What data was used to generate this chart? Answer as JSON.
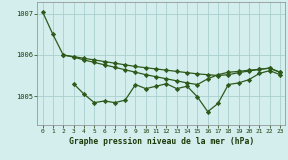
{
  "background_color": "#d4eeed",
  "grid_color": "#aacfcf",
  "line_color": "#2d5a1b",
  "title": "Graphe pression niveau de la mer (hPa)",
  "ylabel_ticks": [
    1005,
    1006,
    1007
  ],
  "xlim": [
    -0.5,
    23.5
  ],
  "ylim": [
    1004.3,
    1007.3
  ],
  "line1": {
    "x": [
      0,
      1,
      2,
      3,
      4,
      5,
      6,
      7,
      8,
      9,
      10,
      11,
      12,
      13,
      14,
      15,
      16,
      17,
      18,
      19,
      20,
      21,
      22,
      23
    ],
    "y": [
      1007.05,
      1006.5,
      1006.0,
      1005.95,
      1005.88,
      1005.82,
      1005.76,
      1005.7,
      1005.64,
      1005.58,
      1005.52,
      1005.47,
      1005.42,
      1005.37,
      1005.32,
      1005.28,
      1005.42,
      1005.52,
      1005.58,
      1005.6,
      1005.63,
      1005.65,
      1005.68,
      1005.58
    ],
    "marker": "D",
    "markersize": 2.2,
    "linewidth": 0.9
  },
  "line2": {
    "x": [
      2,
      3,
      4,
      5,
      6,
      7,
      8,
      9,
      10,
      11,
      12,
      13,
      14,
      15,
      16,
      17,
      18,
      19,
      20,
      21,
      22,
      23
    ],
    "y": [
      1006.0,
      1005.96,
      1005.92,
      1005.88,
      1005.84,
      1005.8,
      1005.76,
      1005.72,
      1005.69,
      1005.66,
      1005.63,
      1005.6,
      1005.57,
      1005.54,
      1005.52,
      1005.5,
      1005.52,
      1005.57,
      1005.61,
      1005.65,
      1005.68,
      1005.58
    ],
    "marker": "D",
    "markersize": 2.2,
    "linewidth": 0.9
  },
  "line3": {
    "x": [
      3,
      4,
      5,
      6,
      7,
      8,
      9,
      10,
      11,
      12,
      13,
      14,
      15,
      16,
      17,
      18,
      19,
      20,
      21,
      22,
      23
    ],
    "y": [
      1005.3,
      1005.05,
      1004.84,
      1004.88,
      1004.84,
      1004.9,
      1005.28,
      1005.18,
      1005.24,
      1005.3,
      1005.18,
      1005.24,
      1004.98,
      1004.62,
      1004.82,
      1005.28,
      1005.32,
      1005.4,
      1005.55,
      1005.62,
      1005.52
    ],
    "marker": "D",
    "markersize": 2.2,
    "linewidth": 0.9
  }
}
